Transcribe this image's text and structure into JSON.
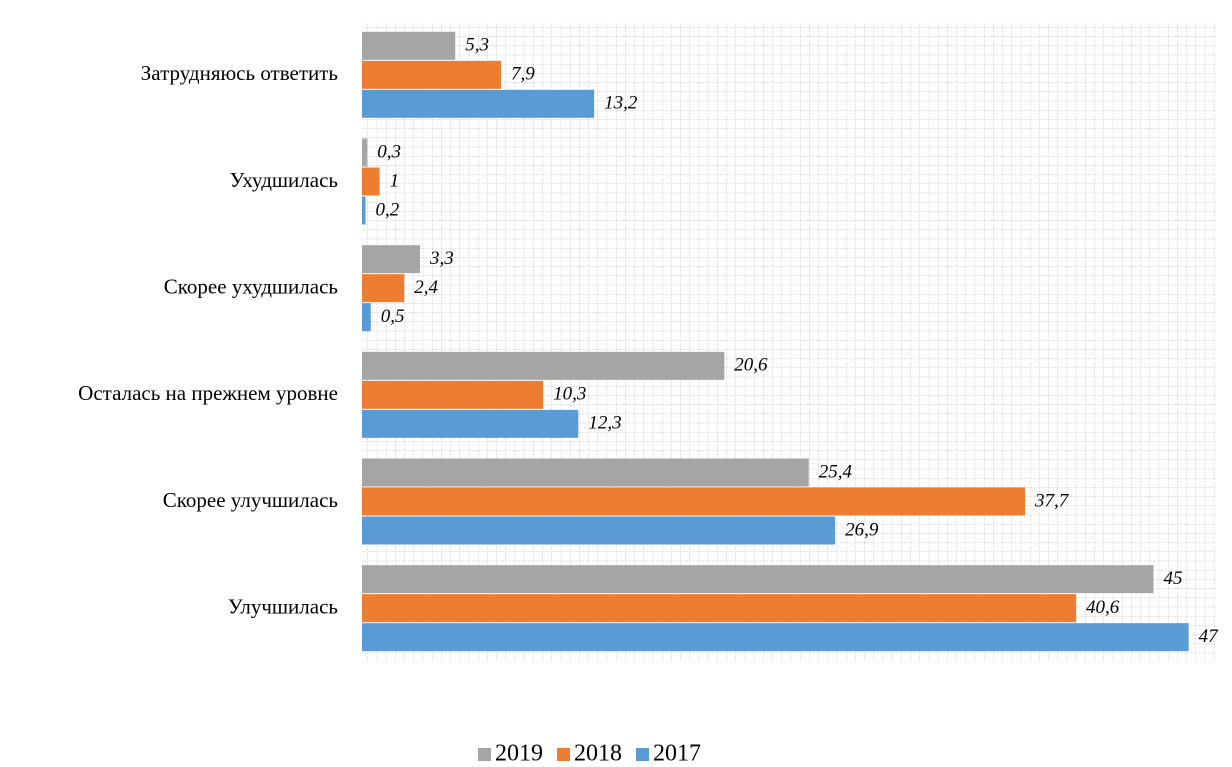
{
  "chart_data": {
    "type": "bar",
    "orientation": "horizontal",
    "categories": [
      "Затрудняюсь ответить",
      "Ухудшилась",
      "Скорее ухудшилась",
      "Осталась на прежнем уровне",
      "Скорее улучшилась",
      "Улучшилась"
    ],
    "series": [
      {
        "name": "2019",
        "color": "#a5a5a5",
        "values": [
          5.3,
          0.3,
          3.3,
          20.6,
          25.4,
          45
        ],
        "value_labels": [
          "5,3",
          "0,3",
          "3,3",
          "20,6",
          "25,4",
          "45"
        ]
      },
      {
        "name": "2018",
        "color": "#ed7d31",
        "values": [
          7.9,
          1,
          2.4,
          10.3,
          37.7,
          40.6
        ],
        "value_labels": [
          "7,9",
          "1",
          "2,4",
          "10,3",
          "37,7",
          "40,6"
        ]
      },
      {
        "name": "2017",
        "color": "#5b9bd5",
        "values": [
          13.2,
          0.2,
          0.5,
          12.3,
          26.9,
          47
        ],
        "value_labels": [
          "13,2",
          "0,2",
          "0,5",
          "12,3",
          "26,9",
          "47"
        ]
      }
    ],
    "xlim": [
      0,
      48.5
    ],
    "grid": true,
    "legend": "bottom"
  }
}
